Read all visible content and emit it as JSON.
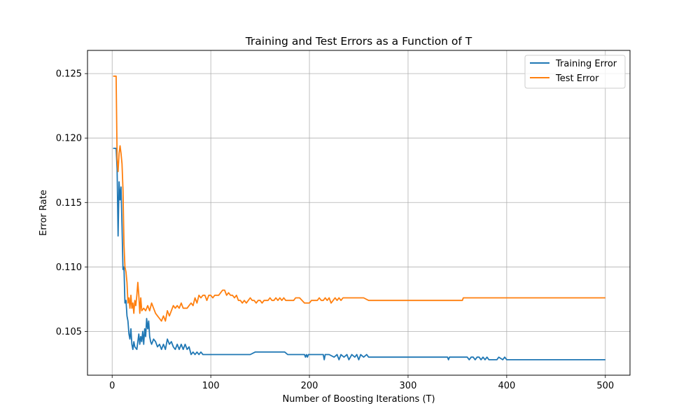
{
  "chart_data": {
    "type": "line",
    "title": "Training and Test Errors as a Function of T",
    "xlabel": "Number of Boosting Iterations (T)",
    "ylabel": "Error Rate",
    "xlim": [
      -25,
      525
    ],
    "ylim": [
      0.1016,
      0.1268
    ],
    "xticks": [
      0,
      100,
      200,
      300,
      400,
      500
    ],
    "xtick_labels": [
      "0",
      "100",
      "200",
      "300",
      "400",
      "500"
    ],
    "yticks": [
      0.105,
      0.11,
      0.115,
      0.12,
      0.125
    ],
    "ytick_labels": [
      "0.105",
      "0.110",
      "0.115",
      "0.120",
      "0.125"
    ],
    "grid": true,
    "legend_position": "top-right",
    "series": [
      {
        "name": "Training Error",
        "color": "#1f77b4",
        "x": [
          1,
          4,
          5,
          6,
          7,
          8,
          9,
          10,
          11,
          12,
          13,
          14,
          15,
          16,
          17,
          18,
          19,
          20,
          21,
          22,
          23,
          25,
          27,
          28,
          29,
          30,
          31,
          32,
          33,
          34,
          35,
          36,
          37,
          38,
          39,
          40,
          42,
          44,
          46,
          48,
          50,
          52,
          54,
          56,
          58,
          60,
          62,
          64,
          66,
          68,
          70,
          72,
          74,
          76,
          78,
          80,
          82,
          84,
          86,
          88,
          90,
          92,
          95,
          100,
          110,
          120,
          130,
          140,
          145,
          150,
          160,
          170,
          175,
          178,
          185,
          195,
          196,
          197,
          198,
          199,
          200,
          210,
          214,
          215,
          216,
          220,
          225,
          228,
          230,
          232,
          235,
          238,
          240,
          243,
          246,
          248,
          250,
          252,
          255,
          258,
          260,
          265,
          275,
          290,
          300,
          320,
          340,
          341,
          342,
          350,
          360,
          362,
          364,
          366,
          368,
          370,
          372,
          374,
          376,
          378,
          380,
          382,
          386,
          390,
          392,
          396,
          398,
          400,
          420,
          450,
          480,
          500
        ],
        "y": [
          0.1192,
          0.1192,
          0.1176,
          0.1124,
          0.1166,
          0.1152,
          0.1162,
          0.1132,
          0.1098,
          0.11,
          0.1072,
          0.1074,
          0.1062,
          0.1058,
          0.1048,
          0.1044,
          0.1052,
          0.104,
          0.1036,
          0.1042,
          0.1038,
          0.1036,
          0.1048,
          0.104,
          0.1046,
          0.1042,
          0.105,
          0.104,
          0.1052,
          0.1046,
          0.106,
          0.1052,
          0.1058,
          0.1046,
          0.1042,
          0.104,
          0.1044,
          0.1042,
          0.1038,
          0.104,
          0.1036,
          0.104,
          0.1036,
          0.1044,
          0.104,
          0.1042,
          0.1038,
          0.1036,
          0.104,
          0.1036,
          0.104,
          0.1036,
          0.104,
          0.1036,
          0.1038,
          0.1032,
          0.1034,
          0.1032,
          0.1034,
          0.1032,
          0.1034,
          0.1032,
          0.1032,
          0.1032,
          0.1032,
          0.1032,
          0.1032,
          0.1032,
          0.1034,
          0.1034,
          0.1034,
          0.1034,
          0.1034,
          0.1032,
          0.1032,
          0.1032,
          0.103,
          0.1032,
          0.103,
          0.1032,
          0.1032,
          0.1032,
          0.1032,
          0.1028,
          0.1032,
          0.1032,
          0.103,
          0.1032,
          0.1028,
          0.1032,
          0.103,
          0.1032,
          0.1028,
          0.1032,
          0.103,
          0.1032,
          0.1028,
          0.1032,
          0.103,
          0.1032,
          0.103,
          0.103,
          0.103,
          0.103,
          0.103,
          0.103,
          0.103,
          0.1028,
          0.103,
          0.103,
          0.103,
          0.1028,
          0.103,
          0.103,
          0.1028,
          0.103,
          0.103,
          0.1028,
          0.103,
          0.1028,
          0.103,
          0.1028,
          0.1028,
          0.1028,
          0.103,
          0.1028,
          0.103,
          0.1028,
          0.1028,
          0.1028,
          0.1028,
          0.1028
        ]
      },
      {
        "name": "Test Error",
        "color": "#ff7f0e",
        "x": [
          1,
          4,
          5,
          6,
          7,
          8,
          9,
          10,
          11,
          12,
          13,
          14,
          15,
          16,
          17,
          18,
          19,
          20,
          21,
          22,
          23,
          24,
          25,
          26,
          27,
          28,
          29,
          30,
          32,
          34,
          36,
          38,
          40,
          42,
          44,
          46,
          48,
          50,
          52,
          54,
          56,
          58,
          60,
          62,
          64,
          66,
          68,
          70,
          72,
          74,
          76,
          78,
          80,
          82,
          84,
          86,
          88,
          90,
          92,
          94,
          96,
          98,
          100,
          102,
          104,
          106,
          108,
          110,
          112,
          114,
          116,
          118,
          120,
          122,
          124,
          126,
          128,
          130,
          132,
          134,
          136,
          138,
          140,
          142,
          144,
          146,
          148,
          150,
          152,
          154,
          156,
          158,
          160,
          162,
          164,
          166,
          168,
          170,
          172,
          174,
          176,
          178,
          180,
          182,
          184,
          186,
          188,
          190,
          195,
          200,
          202,
          204,
          206,
          208,
          210,
          212,
          214,
          216,
          218,
          220,
          222,
          224,
          226,
          228,
          230,
          232,
          234,
          236,
          238,
          240,
          245,
          250,
          255,
          260,
          262,
          264,
          266,
          270,
          280,
          300,
          330,
          355,
          356,
          357,
          360,
          380,
          400,
          450,
          500
        ],
        "y": [
          0.1248,
          0.1248,
          0.1184,
          0.1174,
          0.1188,
          0.1194,
          0.1188,
          0.118,
          0.116,
          0.1118,
          0.11,
          0.1096,
          0.1088,
          0.1072,
          0.1076,
          0.1068,
          0.1078,
          0.1068,
          0.1072,
          0.1064,
          0.1074,
          0.107,
          0.1078,
          0.1088,
          0.1078,
          0.1064,
          0.1076,
          0.1066,
          0.1068,
          0.1066,
          0.107,
          0.1066,
          0.1072,
          0.1068,
          0.1064,
          0.1062,
          0.106,
          0.1058,
          0.1062,
          0.1058,
          0.1066,
          0.1062,
          0.1066,
          0.107,
          0.1068,
          0.107,
          0.1068,
          0.1072,
          0.1068,
          0.1068,
          0.1068,
          0.107,
          0.1072,
          0.107,
          0.1076,
          0.1072,
          0.1078,
          0.1076,
          0.1078,
          0.1078,
          0.1074,
          0.1078,
          0.1078,
          0.1076,
          0.1078,
          0.1078,
          0.1078,
          0.108,
          0.1082,
          0.1082,
          0.1078,
          0.108,
          0.1078,
          0.1078,
          0.1076,
          0.1078,
          0.1074,
          0.1074,
          0.1072,
          0.1074,
          0.1072,
          0.1074,
          0.1076,
          0.1074,
          0.1074,
          0.1072,
          0.1074,
          0.1074,
          0.1072,
          0.1074,
          0.1074,
          0.1074,
          0.1076,
          0.1074,
          0.1074,
          0.1076,
          0.1074,
          0.1076,
          0.1074,
          0.1076,
          0.1074,
          0.1074,
          0.1074,
          0.1074,
          0.1074,
          0.1076,
          0.1076,
          0.1076,
          0.1072,
          0.1072,
          0.1074,
          0.1074,
          0.1074,
          0.1074,
          0.1076,
          0.1074,
          0.1074,
          0.1076,
          0.1074,
          0.1076,
          0.1072,
          0.1074,
          0.1076,
          0.1074,
          0.1076,
          0.1074,
          0.1076,
          0.1076,
          0.1076,
          0.1076,
          0.1076,
          0.1076,
          0.1076,
          0.1074,
          0.1074,
          0.1074,
          0.1074,
          0.1074,
          0.1074,
          0.1074,
          0.1074,
          0.1074,
          0.1076,
          0.1076,
          0.1076,
          0.1076,
          0.1076,
          0.1076,
          0.1076
        ]
      }
    ]
  }
}
